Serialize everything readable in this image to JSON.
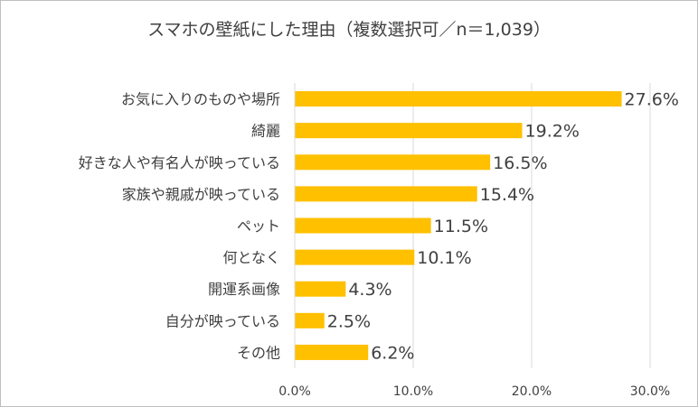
{
  "chart_data": {
    "type": "bar",
    "orientation": "horizontal",
    "title": "スマホの壁紙にした理由（複数選択可／n＝1,039）",
    "categories": [
      "お気に入りのものや場所",
      "綺麗",
      "好きな人や有名人が映っている",
      "家族や親戚が映っている",
      "ペット",
      "何となく",
      "開運系画像",
      "自分が映っている",
      "その他"
    ],
    "values": [
      27.6,
      19.2,
      16.5,
      15.4,
      11.5,
      10.1,
      4.3,
      2.5,
      6.2
    ],
    "value_labels": [
      "27.6%",
      "19.2%",
      "16.5%",
      "15.4%",
      "11.5%",
      "10.1%",
      "4.3%",
      "2.5%",
      "6.2%"
    ],
    "xlim": [
      0,
      30
    ],
    "x_ticks": [
      0,
      10,
      20,
      30
    ],
    "x_tick_labels": [
      "0.0%",
      "10.0%",
      "20.0%",
      "30.0%"
    ],
    "grid": "vertical",
    "legend": "none",
    "bar_color": "#FFC000",
    "grid_color": "#d9d9d9"
  }
}
